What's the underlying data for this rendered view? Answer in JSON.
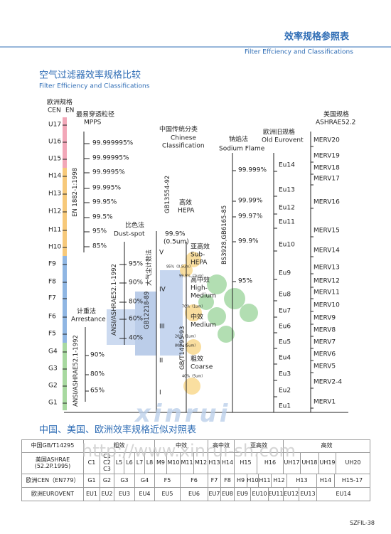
{
  "header": {
    "title": "效率规格参照表",
    "subtitle": "Filter Effciency and Classifications"
  },
  "section1": {
    "title": "空气过滤器效率规格比较",
    "subtitle": "Filter Efficiency and Classifications"
  },
  "diagram": {
    "eu_spec": {
      "title": "欧洲规格",
      "cen": "CEN",
      "en": "EN",
      "standard": "EN 1882-1:1998",
      "grades": [
        "U17",
        "U16",
        "U15",
        "H14",
        "H13",
        "H12",
        "H11",
        "H10",
        "F9",
        "F8",
        "F7",
        "F6",
        "F5",
        "G4",
        "G3",
        "G2",
        "G1"
      ]
    },
    "mpps": {
      "title": "最易穿透粒径",
      "subtitle": "MPPS",
      "values": [
        "99.999995%",
        "99.99995%",
        "99.9995%",
        "99.995%",
        "99.95%",
        "99.5%",
        "95%",
        "85%"
      ]
    },
    "dust_spot": {
      "title": "比色法",
      "subtitle": "Dust-spot",
      "standard": "ANSI/ASHRAE52.1-1992",
      "values": [
        "95%",
        "90%",
        "80%",
        "60%",
        "40%"
      ]
    },
    "arrestance": {
      "title": "计重法",
      "subtitle": "Arrestance",
      "standard": "ANSI/ASHRAE52.1-1992",
      "values": [
        "90%",
        "80%",
        "65%"
      ]
    },
    "chinese": {
      "title": "中国传统分类",
      "subtitle1": "Chinese",
      "subtitle2": "Classification",
      "hepa_standard": "GB13554-92",
      "hepa_cn": "高效",
      "hepa_en": "HEPA",
      "hepa_value": "99.9%",
      "hepa_size": "(0.5um)",
      "count_standard": "GB12218-89",
      "count_method": "大气尘计数法",
      "roman": [
        "V",
        "IV",
        "III",
        "II",
        "I"
      ],
      "count_notes": [
        "95%（0.5um）",
        "99.9%（1um）",
        "70%（1um）",
        "20%（1um）",
        "80%（5um）",
        "40%（5um）"
      ],
      "gbt_standard": "GB/T14295-93",
      "classes": [
        {
          "cn": "亚高效",
          "en": [
            "Sub-",
            "HEPA"
          ]
        },
        {
          "cn": "高中效",
          "en": [
            "High-",
            "Medium"
          ]
        },
        {
          "cn": "中效",
          "en": [
            "Medium"
          ]
        },
        {
          "cn": "粗效",
          "en": [
            "Coarse"
          ]
        }
      ]
    },
    "sodium": {
      "title": "钠焰法",
      "subtitle": "Sodium Flame",
      "standard": "BS3928,GB6165-85",
      "values": [
        "99.999%",
        "99.99%",
        "99.97%",
        "99.9%",
        "95%"
      ]
    },
    "eurovent": {
      "title": "欧洲旧规格",
      "subtitle": "Old Eurovent",
      "grades": [
        "Eu14",
        "Eu13",
        "Eu12",
        "Eu11",
        "Eu10",
        "Eu9",
        "Eu8",
        "Eu7",
        "Eu6",
        "Eu5",
        "Eu4",
        "Eu3",
        "Eu2",
        "Eu1"
      ]
    },
    "ashrae": {
      "title": "美国规格",
      "subtitle": "ASHRAE52.2",
      "grades": [
        "MERV20",
        "MERV19",
        "MERV18",
        "MERV17",
        "MERV16",
        "MERV15",
        "MERV14",
        "MERV13",
        "MERV12",
        "MERV11",
        "MERV10",
        "MERV9",
        "MERV8",
        "MERV7",
        "MERV6",
        "MERV5",
        "MERV2-4",
        "MERV1"
      ]
    }
  },
  "section2": {
    "title": "中国、美国、欧洲效率规格近似对照表"
  },
  "table": {
    "header": [
      "中国GB/T14295",
      "粗效",
      "中效",
      "高中效",
      "亚高效",
      "高效"
    ],
    "rows": [
      {
        "label": [
          "美国ASHRAE",
          "(52.2P.1995)"
        ],
        "cells": [
          "C1",
          [
            "C1",
            "C2",
            "C3"
          ],
          "L5",
          "L6",
          "L7",
          "L8",
          "M9",
          "M10",
          "M11",
          "M12",
          "H13",
          "H14",
          "H15",
          "H16",
          "UH17",
          "UH18",
          "UH19",
          "UH20"
        ]
      },
      {
        "label": [
          "欧洲CEN（EN779）"
        ],
        "cells": [
          "G1",
          "G2",
          "G3",
          "G4",
          "F5",
          "F6",
          "F7",
          "F8",
          "H9",
          "H10",
          "H11",
          "H12",
          "H13",
          "H14",
          "H15-17"
        ]
      },
      {
        "label": [
          "欧洲EUROVENT"
        ],
        "cells": [
          "EU1",
          "EU2",
          "EU3",
          "EU4",
          "EU5",
          "EU6",
          "EU7",
          "EU8",
          "EU9",
          "EU10",
          "EU11",
          "EU12",
          "EU13",
          "EU14"
        ]
      }
    ]
  },
  "watermark": {
    "logo": "xinrui",
    "url": "http://www.xinrui-sh.com"
  },
  "footer": {
    "page": "SZFIL-38"
  }
}
